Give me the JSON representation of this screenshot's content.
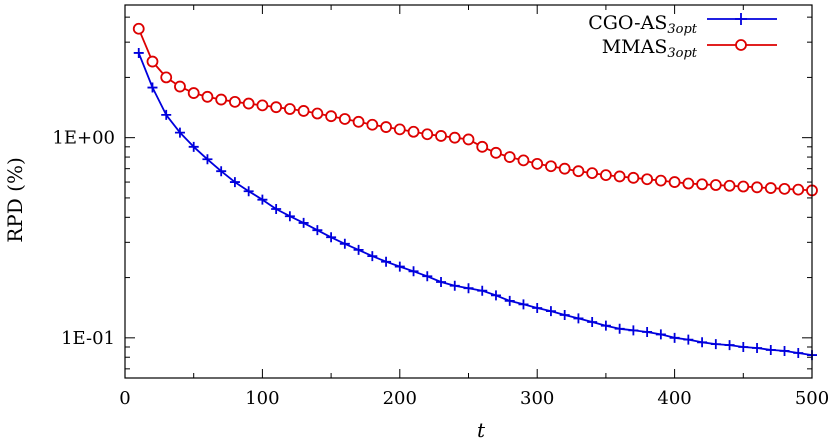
{
  "chart_data": {
    "type": "line",
    "title": "",
    "xlabel": "t",
    "ylabel": "RPD (%)",
    "xlim": [
      0,
      500
    ],
    "ylim": [
      0.063,
      4.6
    ],
    "yscale": "log",
    "x_ticks": [
      0,
      100,
      200,
      300,
      400,
      500
    ],
    "x_tick_labels": [
      "0",
      "100",
      "200",
      "300",
      "400",
      "500"
    ],
    "y_ticks": [
      0.1,
      1
    ],
    "y_tick_labels": [
      "1E-01",
      "1E+00"
    ],
    "grid": false,
    "legend_position": "top-right",
    "series": [
      {
        "name_main": "CGO-AS",
        "name_sub": "3opt",
        "color": "#0000dd",
        "marker": "plus",
        "x": [
          10,
          20,
          30,
          40,
          50,
          60,
          70,
          80,
          90,
          100,
          110,
          120,
          130,
          140,
          150,
          160,
          170,
          180,
          190,
          200,
          210,
          220,
          230,
          240,
          250,
          260,
          270,
          280,
          290,
          300,
          310,
          320,
          330,
          340,
          350,
          360,
          370,
          380,
          390,
          400,
          410,
          420,
          430,
          440,
          450,
          460,
          470,
          480,
          490,
          500
        ],
        "values": [
          2.65,
          1.78,
          1.3,
          1.06,
          0.9,
          0.78,
          0.68,
          0.6,
          0.54,
          0.49,
          0.44,
          0.405,
          0.375,
          0.345,
          0.318,
          0.295,
          0.275,
          0.256,
          0.24,
          0.227,
          0.215,
          0.203,
          0.19,
          0.182,
          0.177,
          0.172,
          0.163,
          0.153,
          0.147,
          0.141,
          0.136,
          0.13,
          0.125,
          0.12,
          0.115,
          0.111,
          0.109,
          0.107,
          0.104,
          0.1,
          0.098,
          0.095,
          0.093,
          0.092,
          0.09,
          0.089,
          0.087,
          0.086,
          0.084,
          0.082
        ]
      },
      {
        "name_main": "MMAS",
        "name_sub": "3opt",
        "color": "#dd0000",
        "marker": "circle",
        "x": [
          10,
          20,
          30,
          40,
          50,
          60,
          70,
          80,
          90,
          100,
          110,
          120,
          130,
          140,
          150,
          160,
          170,
          180,
          190,
          200,
          210,
          220,
          230,
          240,
          250,
          260,
          270,
          280,
          290,
          300,
          310,
          320,
          330,
          340,
          350,
          360,
          370,
          380,
          390,
          400,
          410,
          420,
          430,
          440,
          450,
          460,
          470,
          480,
          490,
          500
        ],
        "values": [
          3.5,
          2.4,
          2.0,
          1.8,
          1.67,
          1.6,
          1.55,
          1.51,
          1.48,
          1.45,
          1.42,
          1.39,
          1.36,
          1.32,
          1.28,
          1.24,
          1.2,
          1.16,
          1.13,
          1.1,
          1.07,
          1.04,
          1.02,
          1.0,
          0.98,
          0.9,
          0.84,
          0.8,
          0.77,
          0.74,
          0.72,
          0.7,
          0.68,
          0.665,
          0.65,
          0.64,
          0.63,
          0.62,
          0.61,
          0.6,
          0.59,
          0.585,
          0.58,
          0.575,
          0.57,
          0.565,
          0.56,
          0.555,
          0.55,
          0.545
        ]
      }
    ]
  }
}
